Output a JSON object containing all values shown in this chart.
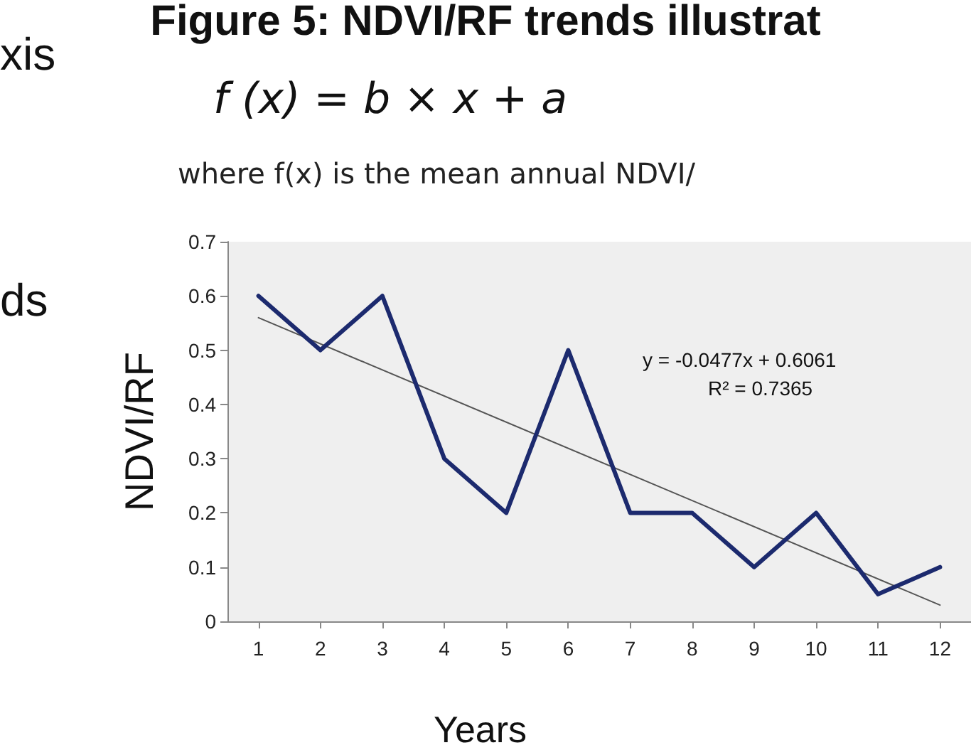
{
  "chart_data": {
    "type": "line",
    "title": "Figure 5: NDVI/RF trends illustrat",
    "subtitle": "f (x) = b × x + a",
    "annotations": [
      "where f(x) is the mean annual NDVI/",
      "xis",
      "ds",
      "y = -0.0477x + 0.6061",
      "R² = 0.7365"
    ],
    "xlabel": "Years",
    "ylabel": "NDVI/RF",
    "x": [
      1,
      2,
      3,
      4,
      5,
      6,
      7,
      8,
      9,
      10,
      11,
      12
    ],
    "series": [
      {
        "color": "#1c2a6e",
        "values": [
          0.6,
          0.5,
          0.6,
          0.3,
          0.2,
          0.5,
          0.2,
          0.2,
          0.1,
          0.2,
          0.05,
          0.1
        ]
      },
      {
        "type": "line",
        "color": "#555555",
        "x": [
          1,
          12
        ],
        "values": [
          0.56,
          0.03
        ]
      }
    ],
    "xlim": [
      0.5,
      12.5
    ],
    "xticks": [
      1,
      2,
      3,
      4,
      5,
      6,
      7,
      8,
      9,
      10,
      11,
      12
    ],
    "ylim": [
      0,
      0.7
    ],
    "yticks": [
      0,
      0.1,
      0.2,
      0.3,
      0.4,
      0.5,
      0.6,
      0.7
    ],
    "marker": "none",
    "line_style": "solid",
    "grid": false
  }
}
